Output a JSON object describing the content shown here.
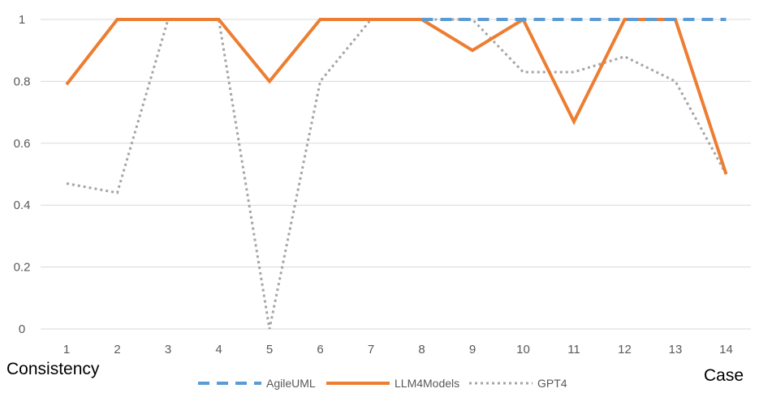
{
  "chart_data": {
    "type": "line",
    "categories": [
      "1",
      "2",
      "3",
      "4",
      "5",
      "6",
      "7",
      "8",
      "9",
      "10",
      "11",
      "12",
      "13",
      "14"
    ],
    "series": [
      {
        "name": "AgileUML",
        "values": [
          null,
          null,
          null,
          null,
          null,
          null,
          null,
          1,
          1,
          1,
          1,
          1,
          1,
          1
        ],
        "color": "#5b9bd5",
        "style": "dashed"
      },
      {
        "name": "LLM4Models",
        "values": [
          0.79,
          1,
          1,
          1,
          0.8,
          1,
          1,
          1,
          0.9,
          1,
          0.67,
          1,
          1,
          0.5
        ],
        "color": "#ed7d31",
        "style": "solid"
      },
      {
        "name": "GPT4",
        "values": [
          0.47,
          0.44,
          1,
          1,
          0,
          0.8,
          1,
          1,
          1,
          0.83,
          0.83,
          0.88,
          0.8,
          0.5
        ],
        "color": "#a5a5a5",
        "style": "dotted"
      }
    ],
    "yticks": [
      "0",
      "0.2",
      "0.4",
      "0.6",
      "0.8",
      "1"
    ],
    "ylim": [
      0,
      1
    ],
    "xlabel": "Case",
    "ylabel": "Consistency",
    "grid": true,
    "legend_position": "bottom"
  }
}
